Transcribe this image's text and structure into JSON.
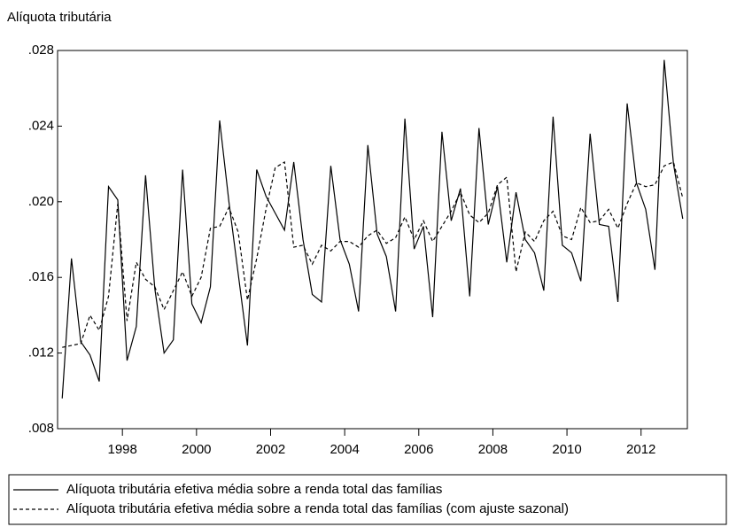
{
  "chart_data": {
    "type": "line",
    "title": "Alíquota tributária",
    "x": [
      1996.375,
      1996.625,
      1996.875,
      1997.125,
      1997.375,
      1997.625,
      1997.875,
      1998.125,
      1998.375,
      1998.625,
      1998.875,
      1999.125,
      1999.375,
      1999.625,
      1999.875,
      2000.125,
      2000.375,
      2000.625,
      2000.875,
      2001.125,
      2001.375,
      2001.625,
      2001.875,
      2002.125,
      2002.375,
      2002.625,
      2002.875,
      2003.125,
      2003.375,
      2003.625,
      2003.875,
      2004.125,
      2004.375,
      2004.625,
      2004.875,
      2005.125,
      2005.375,
      2005.625,
      2005.875,
      2006.125,
      2006.375,
      2006.625,
      2006.875,
      2007.125,
      2007.375,
      2007.625,
      2007.875,
      2008.125,
      2008.375,
      2008.625,
      2008.875,
      2009.125,
      2009.375,
      2009.625,
      2009.875,
      2010.125,
      2010.375,
      2010.625,
      2010.875,
      2011.125,
      2011.375,
      2011.625,
      2011.875,
      2012.125,
      2012.375,
      2012.625,
      2012.875,
      2013.125
    ],
    "series": [
      {
        "name": "Alíquota tributária efetiva média sobre a renda total das famílias",
        "color": "#000000",
        "line_style": "solid",
        "values": [
          0.0096,
          0.017,
          0.0126,
          0.0119,
          0.0105,
          0.0208,
          0.0201,
          0.0116,
          0.0134,
          0.0214,
          0.0154,
          0.012,
          0.0127,
          0.0217,
          0.0146,
          0.0136,
          0.0155,
          0.0243,
          0.02,
          0.0162,
          0.0124,
          0.0217,
          0.0203,
          0.0194,
          0.0185,
          0.0221,
          0.018,
          0.0151,
          0.0147,
          0.0219,
          0.018,
          0.0167,
          0.0142,
          0.023,
          0.0183,
          0.0171,
          0.0142,
          0.0244,
          0.0175,
          0.0187,
          0.0139,
          0.0237,
          0.019,
          0.0207,
          0.015,
          0.0239,
          0.0188,
          0.0208,
          0.0168,
          0.0205,
          0.018,
          0.0173,
          0.0153,
          0.0245,
          0.0177,
          0.0173,
          0.0158,
          0.0236,
          0.0188,
          0.0187,
          0.0147,
          0.0252,
          0.021,
          0.0196,
          0.0164,
          0.0275,
          0.022,
          0.0191
        ]
      },
      {
        "name": "Alíquota tributária efetiva média sobre a renda total das famílias (com ajuste sazonal)",
        "color": "#000000",
        "line_style": "dashed",
        "values": [
          0.0123,
          0.0124,
          0.0125,
          0.014,
          0.0132,
          0.015,
          0.0199,
          0.0137,
          0.0168,
          0.0159,
          0.0155,
          0.0143,
          0.0153,
          0.0163,
          0.015,
          0.016,
          0.0186,
          0.0187,
          0.0197,
          0.0184,
          0.0148,
          0.017,
          0.0196,
          0.0218,
          0.0221,
          0.0176,
          0.0177,
          0.0167,
          0.0177,
          0.0174,
          0.0179,
          0.0179,
          0.0176,
          0.0182,
          0.0185,
          0.0178,
          0.0181,
          0.0192,
          0.018,
          0.019,
          0.0179,
          0.0187,
          0.0195,
          0.0205,
          0.0193,
          0.0189,
          0.0194,
          0.0209,
          0.0213,
          0.0163,
          0.0184,
          0.0179,
          0.019,
          0.0195,
          0.0182,
          0.018,
          0.0197,
          0.0189,
          0.019,
          0.0196,
          0.0186,
          0.0199,
          0.021,
          0.0208,
          0.0209,
          0.0219,
          0.0221,
          0.0202
        ]
      }
    ],
    "xlim": [
      1996.25,
      2013.25
    ],
    "xticks": [
      1998,
      2000,
      2002,
      2004,
      2006,
      2008,
      2010,
      2012
    ],
    "ylim": [
      0.008,
      0.028
    ],
    "yticks": [
      {
        "value": 0.008,
        "label": ".008"
      },
      {
        "value": 0.012,
        "label": ".012"
      },
      {
        "value": 0.016,
        "label": ".016"
      },
      {
        "value": 0.02,
        "label": ".020"
      },
      {
        "value": 0.024,
        "label": ".024"
      },
      {
        "value": 0.028,
        "label": ".028"
      }
    ],
    "grid": false,
    "legend": "bottom"
  }
}
